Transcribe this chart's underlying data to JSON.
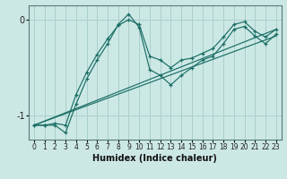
{
  "xlabel": "Humidex (Indice chaleur)",
  "background_color": "#cce8e5",
  "grid_color": "#aacfcc",
  "line_color": "#1a6e65",
  "xlim": [
    -0.5,
    23.5
  ],
  "ylim": [
    -1.25,
    0.15
  ],
  "xticks": [
    0,
    1,
    2,
    3,
    4,
    5,
    6,
    7,
    8,
    9,
    10,
    11,
    12,
    13,
    14,
    15,
    16,
    17,
    18,
    19,
    20,
    21,
    22,
    23
  ],
  "yticks": [
    -1,
    0
  ],
  "line1_x": [
    0,
    1,
    2,
    3,
    4,
    5,
    6,
    7,
    8,
    9,
    10,
    11,
    12,
    13,
    14,
    15,
    16,
    17,
    18,
    19,
    20,
    21,
    22,
    23
  ],
  "line1_y": [
    -1.1,
    -1.1,
    -1.1,
    -1.18,
    -0.88,
    -0.62,
    -0.42,
    -0.25,
    -0.05,
    0.06,
    -0.08,
    -0.52,
    -0.58,
    -0.68,
    -0.58,
    -0.5,
    -0.42,
    -0.38,
    -0.25,
    -0.1,
    -0.07,
    -0.17,
    -0.25,
    -0.15
  ],
  "line2_x": [
    0,
    1,
    2,
    3,
    4,
    5,
    6,
    7,
    8,
    9,
    10,
    11,
    12,
    13,
    14,
    15,
    16,
    17,
    18,
    19,
    20,
    21,
    22,
    23
  ],
  "line2_y": [
    -1.1,
    -1.1,
    -1.08,
    -1.1,
    -0.78,
    -0.55,
    -0.36,
    -0.2,
    -0.06,
    0.0,
    -0.05,
    -0.38,
    -0.42,
    -0.5,
    -0.42,
    -0.4,
    -0.35,
    -0.3,
    -0.18,
    -0.05,
    -0.02,
    -0.12,
    -0.18,
    -0.1
  ],
  "line3_x": [
    0,
    23
  ],
  "line3_y": [
    -1.1,
    -0.1
  ],
  "line4_x": [
    0,
    23
  ],
  "line4_y": [
    -1.1,
    -0.17
  ]
}
